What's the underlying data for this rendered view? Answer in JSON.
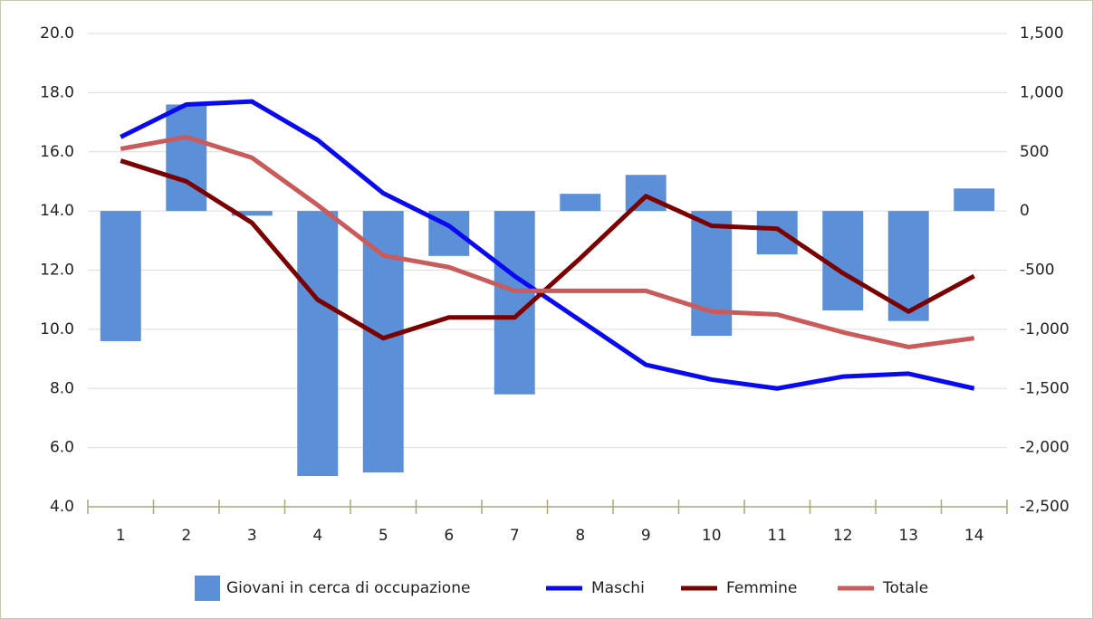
{
  "chart_data": {
    "type": "bar-line",
    "categories": [
      "1",
      "2",
      "3",
      "4",
      "5",
      "6",
      "7",
      "8",
      "9",
      "10",
      "11",
      "12",
      "13",
      "14"
    ],
    "series": [
      {
        "name": "Giovani in cerca di occupazione",
        "type": "bar",
        "axis": "y2",
        "color": "#5b8fd8",
        "values": [
          -1100,
          900,
          -40,
          -2240,
          -2210,
          -380,
          -1550,
          145,
          305,
          -1055,
          -367,
          -840,
          -930,
          190
        ]
      },
      {
        "name": "Maschi",
        "type": "line",
        "color": "#0a0af0",
        "values": [
          16.5,
          17.6,
          17.7,
          16.4,
          14.6,
          13.5,
          11.8,
          10.3,
          8.8,
          8.3,
          8.0,
          8.4,
          8.5,
          8.0
        ]
      },
      {
        "name": "Femmine",
        "type": "line",
        "color": "#7b0000",
        "values": [
          15.7,
          15.0,
          13.6,
          11.0,
          9.7,
          10.4,
          10.4,
          12.4,
          14.5,
          13.5,
          13.4,
          11.9,
          10.6,
          11.8
        ]
      },
      {
        "name": "Totale",
        "type": "line",
        "color": "#c95b5b",
        "values": [
          16.1,
          16.5,
          15.8,
          14.2,
          12.5,
          12.1,
          11.3,
          11.3,
          11.3,
          10.6,
          10.5,
          9.9,
          9.4,
          9.7
        ]
      }
    ],
    "ylim": [
      4,
      20
    ],
    "yticks": [
      {
        "value": 4,
        "label": "4.0"
      },
      {
        "value": 6,
        "label": "6.0"
      },
      {
        "value": 8,
        "label": "8.0"
      },
      {
        "value": 10,
        "label": "10.0"
      },
      {
        "value": 12,
        "label": "12.0"
      },
      {
        "value": 14,
        "label": "14.0"
      },
      {
        "value": 16,
        "label": "16.0"
      },
      {
        "value": 18,
        "label": "18.0"
      },
      {
        "value": 20,
        "label": "20.0"
      }
    ],
    "y2lim": [
      -2500,
      1500
    ],
    "y2ticks": [
      {
        "value": -2500,
        "label": "-2,500"
      },
      {
        "value": -2000,
        "label": "-2,000"
      },
      {
        "value": -1500,
        "label": "-1,500"
      },
      {
        "value": -1000,
        "label": "-1,000"
      },
      -500,
      0,
      500,
      {
        "value": 1000,
        "label": "1,000"
      },
      {
        "value": 1500,
        "label": "1,500"
      }
    ],
    "grid": true,
    "legend": "bottom"
  }
}
